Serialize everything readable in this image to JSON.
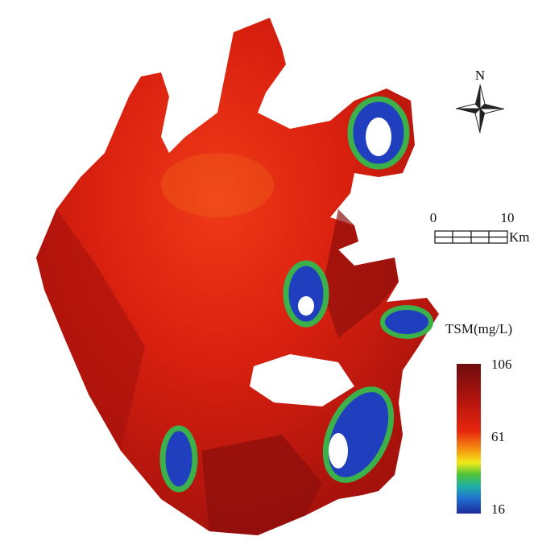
{
  "north_arrow": {
    "label": "N"
  },
  "scale_bar": {
    "start": 0,
    "end": 10,
    "unit": "Km"
  },
  "legend": {
    "title": "TSM(mg/L)",
    "ticks": [
      106,
      61,
      16
    ]
  }
}
